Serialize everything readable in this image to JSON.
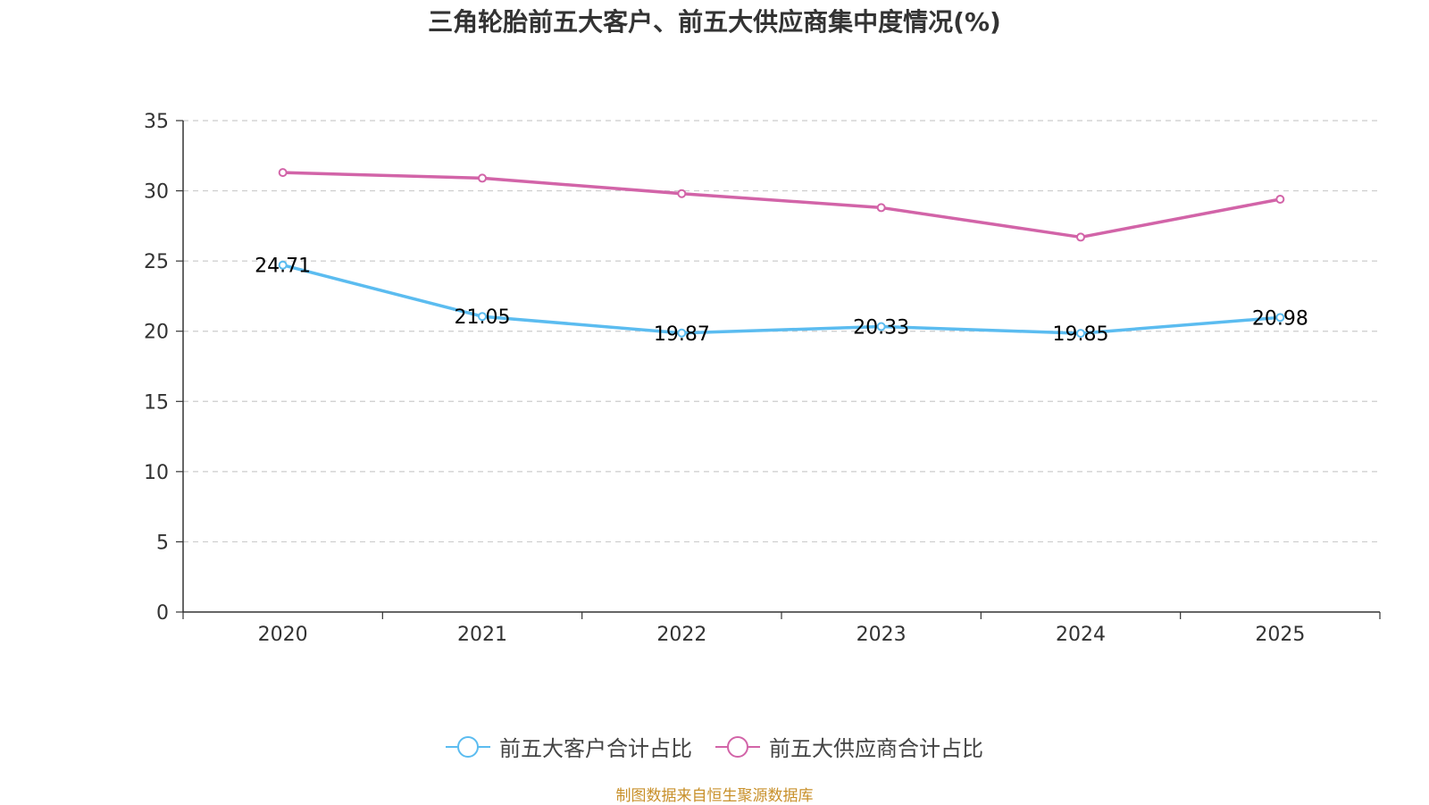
{
  "chart_data": {
    "type": "line",
    "title": "三角轮胎前五大客户、前五大供应商集中度情况(%)",
    "categories": [
      "2020",
      "2021",
      "2022",
      "2023",
      "2024",
      "2025"
    ],
    "xlabel": "",
    "ylabel": "",
    "ylim": [
      0,
      35
    ],
    "yticks": [
      "0",
      "5",
      "10",
      "15",
      "20",
      "25",
      "30",
      "35"
    ],
    "grid": true,
    "legend_position": "bottom",
    "series": [
      {
        "name": "前五大客户合计占比",
        "color": "#5bbcf0",
        "values": [
          24.71,
          21.05,
          19.87,
          20.33,
          19.85,
          20.98
        ],
        "labels": [
          "24.71",
          "21.05",
          "19.87",
          "20.33",
          "19.85",
          "20.98"
        ]
      },
      {
        "name": "前五大供应商合计占比",
        "color": "#d264a8",
        "values": [
          31.3,
          30.9,
          29.8,
          28.8,
          26.7,
          29.4
        ],
        "labels": []
      }
    ],
    "source": "制图数据来自恒生聚源数据库"
  }
}
